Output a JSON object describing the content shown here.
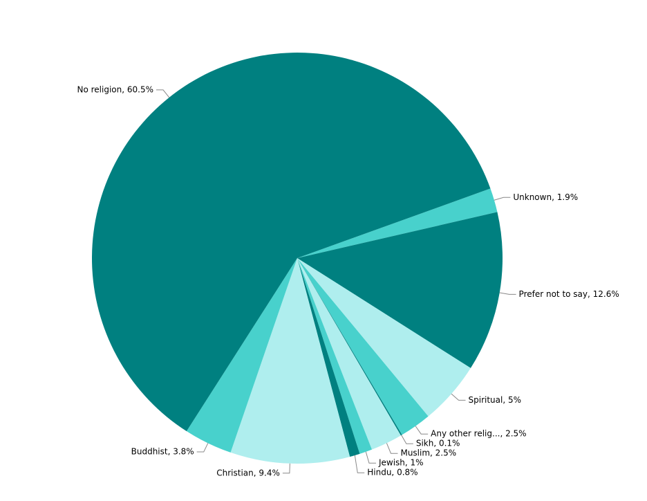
{
  "chart_data": {
    "type": "pie",
    "labels": [
      "Unknown, 1.9%",
      "Prefer not to say, 12.6%",
      "Spiritual, 5%",
      "Any other relig..., 2.5%",
      "Sikh, 0.1%",
      "Muslim, 2.5%",
      "Jewish, 1%",
      "Hindu, 0.8%",
      "Christian, 9.4%",
      "Buddhist, 3.8%",
      "No religion, 60.5%"
    ],
    "values": [
      1.9,
      12.6,
      5,
      2.5,
      0.1,
      2.5,
      1,
      0.8,
      9.4,
      3.8,
      60.5
    ],
    "colors": [
      "#48d1cc",
      "#008080",
      "#afeeee",
      "#48d1cc",
      "#008080",
      "#afeeee",
      "#48d1cc",
      "#008080",
      "#afeeee",
      "#48d1cc",
      "#008080"
    ]
  }
}
